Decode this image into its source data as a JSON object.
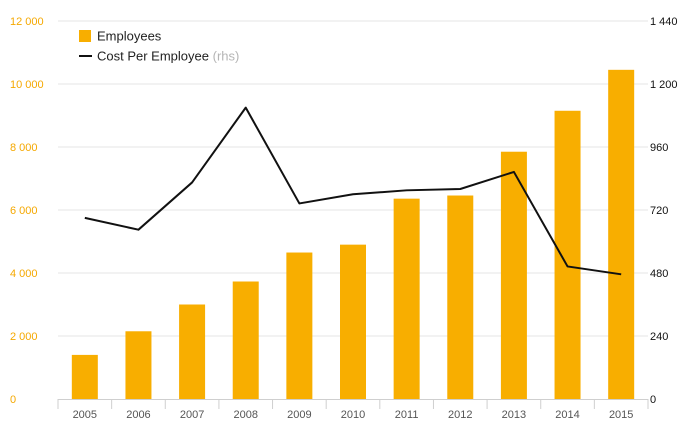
{
  "chart_data": {
    "type": "bar",
    "categories": [
      "2005",
      "2006",
      "2007",
      "2008",
      "2009",
      "2010",
      "2011",
      "2012",
      "2013",
      "2014",
      "2015"
    ],
    "series": [
      {
        "name": "Employees",
        "type": "bar",
        "axis": "left",
        "color": "#f8ae00",
        "values": [
          1400,
          2150,
          3000,
          3730,
          4650,
          4900,
          6360,
          6460,
          7850,
          9150,
          10450
        ]
      },
      {
        "name": "Cost Per Employee",
        "type": "line",
        "axis": "right",
        "color": "#111111",
        "values": [
          690,
          645,
          825,
          1110,
          745,
          780,
          795,
          800,
          865,
          505,
          475
        ]
      }
    ],
    "y_left": {
      "range": [
        0,
        12000
      ],
      "ticks": [
        "0",
        "2 000",
        "4 000",
        "6 000",
        "8 000",
        "10 000",
        "12 000"
      ],
      "color": "#f5a800"
    },
    "y_right": {
      "range": [
        0,
        1440
      ],
      "ticks": [
        "0",
        "240",
        "480",
        "720",
        "960",
        "1 200",
        "1 440"
      ],
      "color": "#111111"
    },
    "legend": {
      "position": "top-left",
      "items": [
        {
          "label": "Employees",
          "note": ""
        },
        {
          "label": "Cost Per Employee",
          "note": "(rhs)"
        }
      ]
    },
    "grid": true
  }
}
